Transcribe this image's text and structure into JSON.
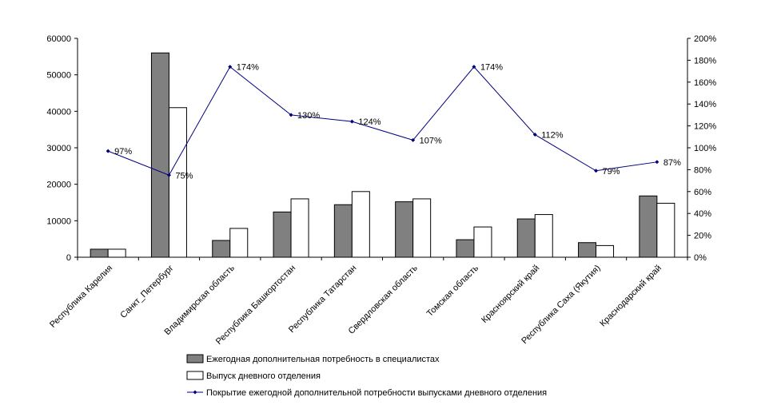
{
  "chart_data": {
    "type": "bar",
    "categories": [
      "Республика Карелия",
      "Санкт_Петербург",
      "Владимирская область",
      "Республика Башкортостан",
      "Республика Татарстан",
      "Свердловская область",
      "Томская область",
      "Красноярский край",
      "Республика Саха (Якутия)",
      "Краснодарский край"
    ],
    "series": [
      {
        "name": "Ежегодная дополнительная потребность в специалистах",
        "kind": "bar",
        "axis": "left",
        "color": "#808080",
        "values": [
          2200,
          56000,
          4600,
          12400,
          14400,
          15200,
          4800,
          10500,
          4000,
          16800
        ]
      },
      {
        "name": "Выпуск дневного отделения",
        "kind": "bar",
        "axis": "left",
        "color": "#ffffff",
        "values": [
          2200,
          41000,
          7900,
          16000,
          18000,
          16000,
          8300,
          11700,
          3200,
          14800
        ]
      },
      {
        "name": "Покрытие ежегодной дополнительной потребности выпусками дневного отделения",
        "kind": "line",
        "axis": "right",
        "color": "#000080",
        "values": [
          97,
          75,
          174,
          130,
          124,
          107,
          174,
          112,
          79,
          87
        ],
        "labels": [
          "97%",
          "75%",
          "174%",
          "130%",
          "124%",
          "107%",
          "174%",
          "112%",
          "79%",
          "87%"
        ]
      }
    ],
    "y_left": {
      "ylim": [
        0,
        60000
      ],
      "ticks": [
        "0",
        "10000",
        "20000",
        "30000",
        "40000",
        "50000",
        "60000"
      ]
    },
    "y_right": {
      "ylim": [
        0,
        200
      ],
      "ticks": [
        "0%",
        "20%",
        "40%",
        "60%",
        "80%",
        "100%",
        "120%",
        "140%",
        "160%",
        "180%",
        "200%"
      ]
    },
    "grid": false,
    "legend_position": "bottom"
  }
}
